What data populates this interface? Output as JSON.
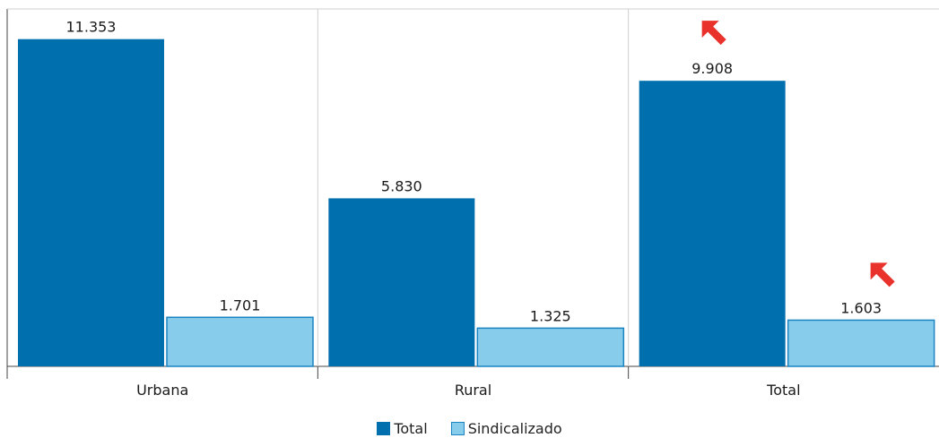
{
  "chart_data": {
    "type": "bar",
    "title": "",
    "xlabel": "",
    "ylabel": "",
    "categories": [
      "Urbana",
      "Rural",
      "Total"
    ],
    "series": [
      {
        "name": "Total",
        "values": [
          11353,
          5830,
          9908
        ],
        "labels": [
          "11.353",
          "5.830",
          "9.908"
        ],
        "color": "#006fae"
      },
      {
        "name": "Sindicalizado",
        "values": [
          1701,
          1325,
          1603
        ],
        "labels": [
          "1.701",
          "1.325",
          "1.603"
        ],
        "color": "#87cdeb"
      }
    ],
    "ylim": [
      0,
      12400
    ],
    "grid": "vertical separators between categories",
    "legend_position": "bottom-center",
    "annotations": [
      {
        "type": "red-arrow",
        "points_to": "Total / Total (9.908)",
        "color": "#e8322b"
      },
      {
        "type": "red-arrow",
        "points_to": "Total / Sindicalizado (1.603)",
        "color": "#e8322b"
      }
    ]
  }
}
